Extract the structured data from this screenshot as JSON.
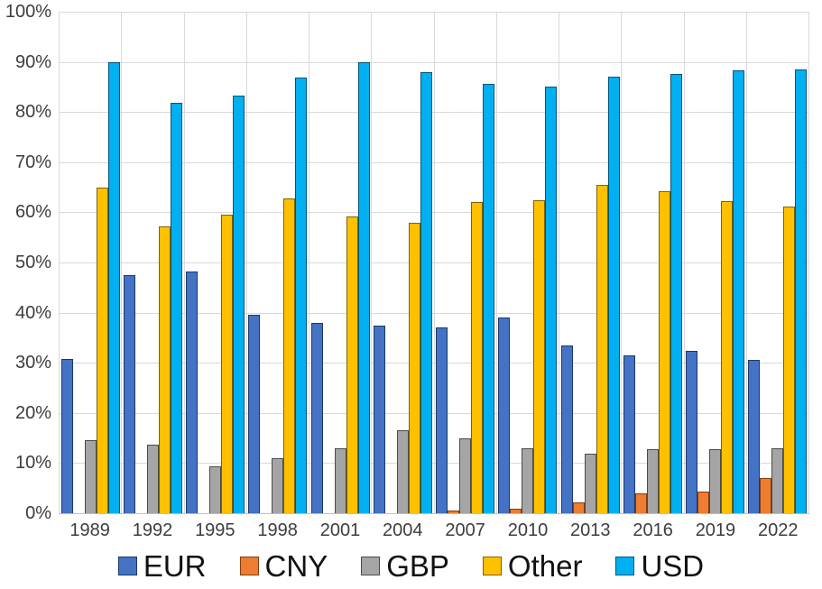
{
  "chart_data": {
    "type": "bar",
    "title": "",
    "xlabel": "",
    "ylabel": "",
    "categories": [
      "1989",
      "1992",
      "1995",
      "1998",
      "2001",
      "2004",
      "2007",
      "2010",
      "2013",
      "2016",
      "2019",
      "2022"
    ],
    "series": [
      {
        "name": "EUR",
        "color": "#4472C4",
        "border_color": "#1f3864",
        "values": [
          30.7,
          47.5,
          48.2,
          39.5,
          37.9,
          37.4,
          37.0,
          39.0,
          33.4,
          31.4,
          32.3,
          30.5
        ]
      },
      {
        "name": "CNY",
        "color": "#ED7D31",
        "border_color": "#843c0c",
        "values": [
          0,
          0,
          0,
          0,
          0,
          0,
          0.5,
          0.9,
          2.2,
          4.0,
          4.3,
          7.0
        ]
      },
      {
        "name": "GBP",
        "color": "#A5A5A5",
        "border_color": "#4a4a4a",
        "values": [
          14.5,
          13.6,
          9.3,
          11.0,
          13.0,
          16.5,
          14.9,
          12.9,
          11.8,
          12.8,
          12.8,
          12.9
        ]
      },
      {
        "name": "Other",
        "color": "#FFC000",
        "border_color": "#7f6000",
        "values": [
          64.9,
          57.2,
          59.5,
          62.7,
          59.1,
          58.0,
          62.1,
          62.4,
          65.4,
          64.2,
          62.2,
          61.2
        ]
      },
      {
        "name": "USD",
        "color": "#00B0F0",
        "border_color": "#00537a",
        "values": [
          90.0,
          81.9,
          83.2,
          86.8,
          89.9,
          88.0,
          85.6,
          85.0,
          87.0,
          87.6,
          88.3,
          88.5
        ]
      }
    ],
    "y_axis": {
      "min": 0,
      "max": 100,
      "step": 10,
      "tick_labels": [
        "0%",
        "10%",
        "20%",
        "30%",
        "40%",
        "50%",
        "60%",
        "70%",
        "80%",
        "90%",
        "100%"
      ]
    },
    "grid": true,
    "legend_position": "bottom",
    "legend_labels": [
      "EUR",
      "CNY",
      "GBP",
      "Other",
      "USD"
    ],
    "colors": {
      "gridline": "#d9d9d9",
      "axis_line": "#bfbfbf",
      "tick_text": "#3d3d3d",
      "legend_text": "#111111",
      "background": "#ffffff"
    }
  }
}
